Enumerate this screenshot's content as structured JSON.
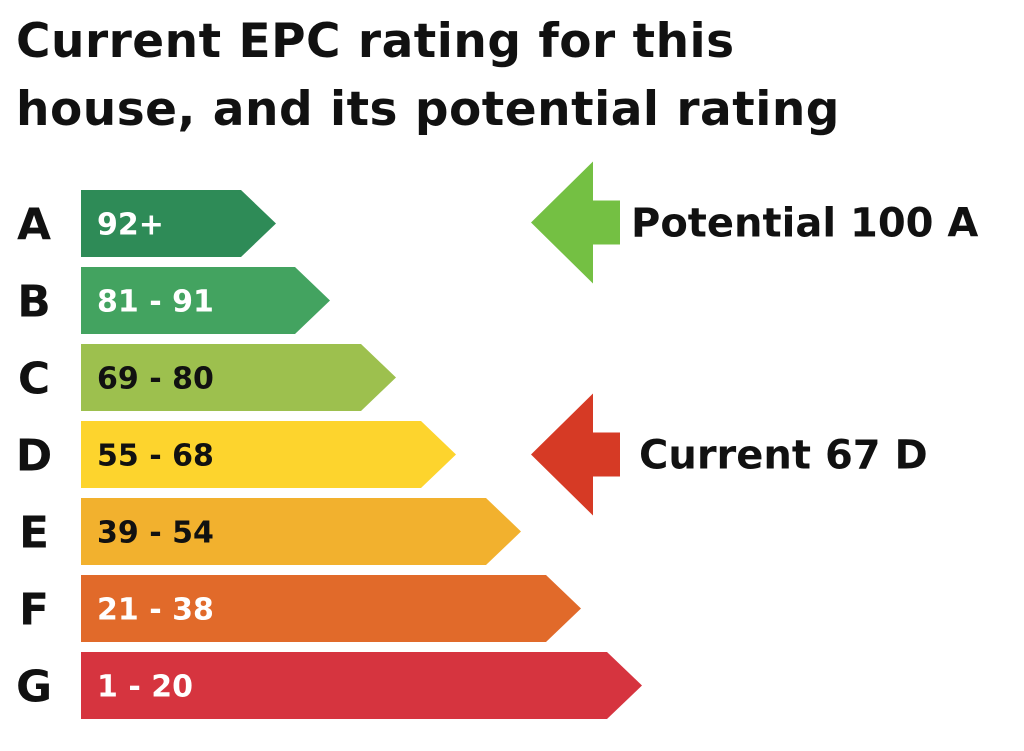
{
  "title_lines": [
    "Current EPC rating for this",
    "house, and its potential rating"
  ],
  "chart_data": {
    "type": "bar",
    "bands": [
      {
        "letter": "A",
        "range": "92+",
        "min": 92,
        "max": 100,
        "color": "#2E8B57",
        "text_color": "#ffffff"
      },
      {
        "letter": "B",
        "range": "81 - 91",
        "min": 81,
        "max": 91,
        "color": "#43A360",
        "text_color": "#ffffff"
      },
      {
        "letter": "C",
        "range": "69 - 80",
        "min": 69,
        "max": 80,
        "color": "#9DC04E",
        "text_color": "#111111"
      },
      {
        "letter": "D",
        "range": "55 - 68",
        "min": 55,
        "max": 68,
        "color": "#FDD42D",
        "text_color": "#111111"
      },
      {
        "letter": "E",
        "range": "39 - 54",
        "min": 39,
        "max": 54,
        "color": "#F2B12E",
        "text_color": "#111111"
      },
      {
        "letter": "F",
        "range": "21 - 38",
        "min": 21,
        "max": 38,
        "color": "#E16A2A",
        "text_color": "#ffffff"
      },
      {
        "letter": "G",
        "range": "1 - 20",
        "min": 1,
        "max": 20,
        "color": "#D6343F",
        "text_color": "#ffffff"
      }
    ],
    "markers": [
      {
        "label": "Potential 100 A",
        "score": 100,
        "band": "A",
        "color": "#74C043"
      },
      {
        "label": "Current 67 D",
        "score": 67,
        "band": "D",
        "color": "#D63A25"
      }
    ]
  }
}
